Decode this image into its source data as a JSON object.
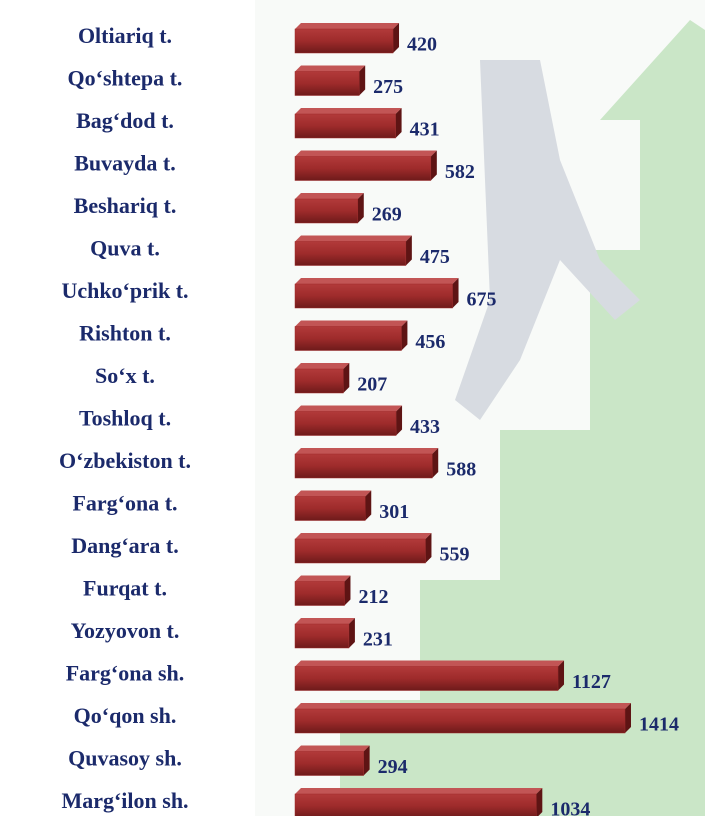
{
  "chart_data": {
    "type": "bar",
    "orientation": "horizontal",
    "categories": [
      "Oltiariq t.",
      "Qo‘shtepa t.",
      "Bag‘dod t.",
      "Buvayda t.",
      "Beshariq t.",
      "Quva t.",
      "Uchko‘prik t.",
      "Rishton t.",
      "So‘x t.",
      "Toshloq t.",
      "O‘zbekiston t.",
      "Farg‘ona t.",
      "Dang‘ara t.",
      "Furqat t.",
      "Yozyovon t.",
      "Farg‘ona sh.",
      "Qo‘qon sh.",
      "Quvasoy sh.",
      "Marg‘ilon sh."
    ],
    "values": [
      420,
      275,
      431,
      582,
      269,
      475,
      675,
      456,
      207,
      433,
      588,
      301,
      559,
      212,
      231,
      1127,
      1414,
      294,
      1034
    ],
    "color": "#9e2b2b"
  }
}
